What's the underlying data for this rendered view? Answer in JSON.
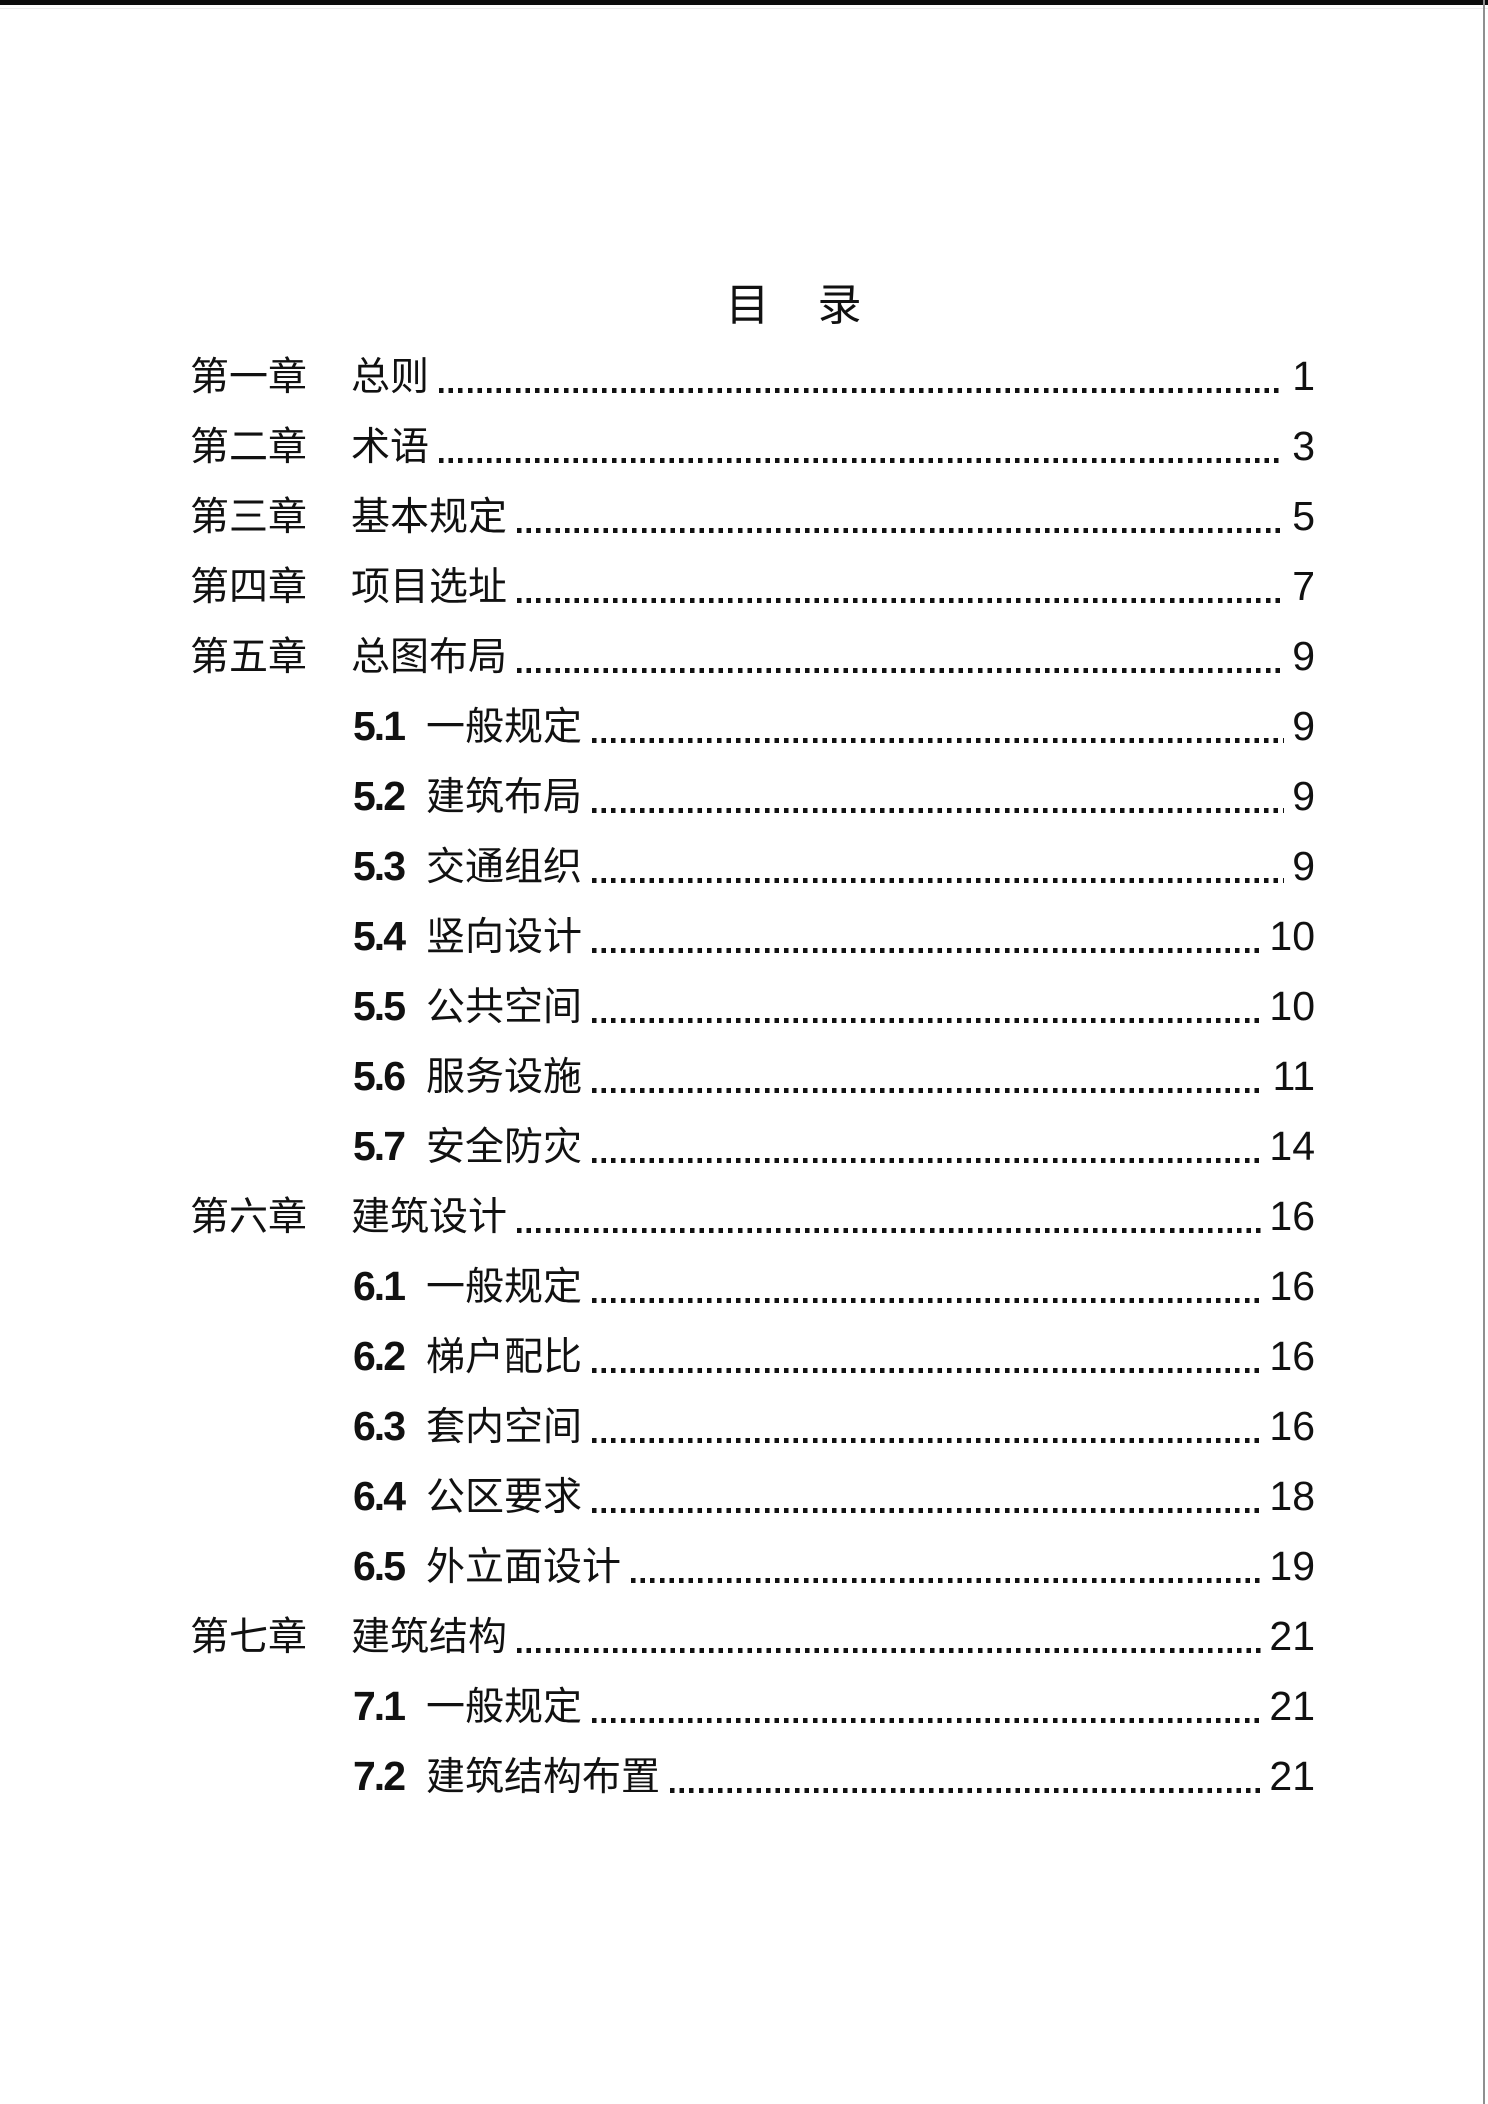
{
  "toc": {
    "title": "目　录",
    "entries": [
      {
        "type": "chapter",
        "number": "第一章",
        "title": "总则",
        "page": "1"
      },
      {
        "type": "chapter",
        "number": "第二章",
        "title": "术语",
        "page": "3"
      },
      {
        "type": "chapter",
        "number": "第三章",
        "title": "基本规定",
        "page": "5"
      },
      {
        "type": "chapter",
        "number": "第四章",
        "title": "项目选址",
        "page": "7"
      },
      {
        "type": "chapter",
        "number": "第五章",
        "title": "总图布局",
        "page": "9"
      },
      {
        "type": "section",
        "number": "5.1",
        "title": "一般规定",
        "page": "9"
      },
      {
        "type": "section",
        "number": "5.2",
        "title": "建筑布局",
        "page": "9"
      },
      {
        "type": "section",
        "number": "5.3",
        "title": "交通组织",
        "page": "9"
      },
      {
        "type": "section",
        "number": "5.4",
        "title": "竖向设计",
        "page": "10"
      },
      {
        "type": "section",
        "number": "5.5",
        "title": "公共空间",
        "page": "10"
      },
      {
        "type": "section",
        "number": "5.6",
        "title": "服务设施",
        "page": "11"
      },
      {
        "type": "section",
        "number": "5.7",
        "title": "安全防灾",
        "page": "14"
      },
      {
        "type": "chapter",
        "number": "第六章",
        "title": "建筑设计",
        "page": "16"
      },
      {
        "type": "section",
        "number": "6.1",
        "title": "一般规定",
        "page": "16"
      },
      {
        "type": "section",
        "number": "6.2",
        "title": "梯户配比",
        "page": "16"
      },
      {
        "type": "section",
        "number": "6.3",
        "title": "套内空间",
        "page": "16"
      },
      {
        "type": "section",
        "number": "6.4",
        "title": "公区要求",
        "page": "18"
      },
      {
        "type": "section",
        "number": "6.5",
        "title": "外立面设计",
        "page": "19"
      },
      {
        "type": "chapter",
        "number": "第七章",
        "title": "建筑结构",
        "page": "21"
      },
      {
        "type": "section",
        "number": "7.1",
        "title": "一般规定",
        "page": "21"
      },
      {
        "type": "section",
        "number": "7.2",
        "title": "建筑结构布置",
        "page": "21"
      }
    ]
  }
}
